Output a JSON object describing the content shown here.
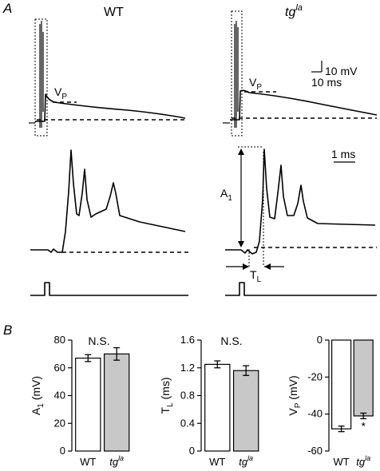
{
  "panels": {
    "a_letter": "A",
    "b_letter": "B",
    "wt_label": "WT",
    "tg_label": "tg",
    "tg_superscript": "la",
    "vp_label": "V",
    "vp_sub": "P",
    "a1_label": "A",
    "a1_sub": "1",
    "tl_label": "T",
    "tl_sub": "L",
    "scale_mv": "10 mV",
    "scale_ms": "10 ms",
    "scale_1ms": "1 ms"
  },
  "chart_data": [
    {
      "type": "bar",
      "categories": [
        "WT",
        "tgla"
      ],
      "values": [
        67,
        70
      ],
      "errors": [
        2.5,
        4.5
      ],
      "ylabel": "A1 (mV)",
      "ylabel_main": "A",
      "ylabel_sub": "1",
      "ylabel_unit": " (mV)",
      "ylim": [
        0,
        80
      ],
      "yticks": [
        "0",
        "20",
        "40",
        "60",
        "80"
      ],
      "significance": "N.S.",
      "bar_colors": [
        "#ffffff",
        "#c8c8c8"
      ]
    },
    {
      "type": "bar",
      "categories": [
        "WT",
        "tgla"
      ],
      "values": [
        1.25,
        1.16
      ],
      "errors": [
        0.05,
        0.07
      ],
      "ylabel": "TL (ms)",
      "ylabel_main": "T",
      "ylabel_sub": "L",
      "ylabel_unit": " (ms)",
      "ylim": [
        0,
        1.6
      ],
      "yticks": [
        "0",
        "0.4",
        "0.8",
        "1.2",
        "1.6"
      ],
      "significance": "N.S.",
      "bar_colors": [
        "#ffffff",
        "#c8c8c8"
      ]
    },
    {
      "type": "bar",
      "categories": [
        "WT",
        "tgla"
      ],
      "values": [
        -48,
        -41
      ],
      "errors": [
        1.5,
        1.5
      ],
      "ylabel": "VP (mV)",
      "ylabel_main": "V",
      "ylabel_sub": "P",
      "ylabel_unit": " (mV)",
      "ylim": [
        -60,
        0
      ],
      "yticks": [
        "-60",
        "-40",
        "-20",
        "0"
      ],
      "significance": "*",
      "bar_colors": [
        "#ffffff",
        "#c8c8c8"
      ]
    }
  ]
}
